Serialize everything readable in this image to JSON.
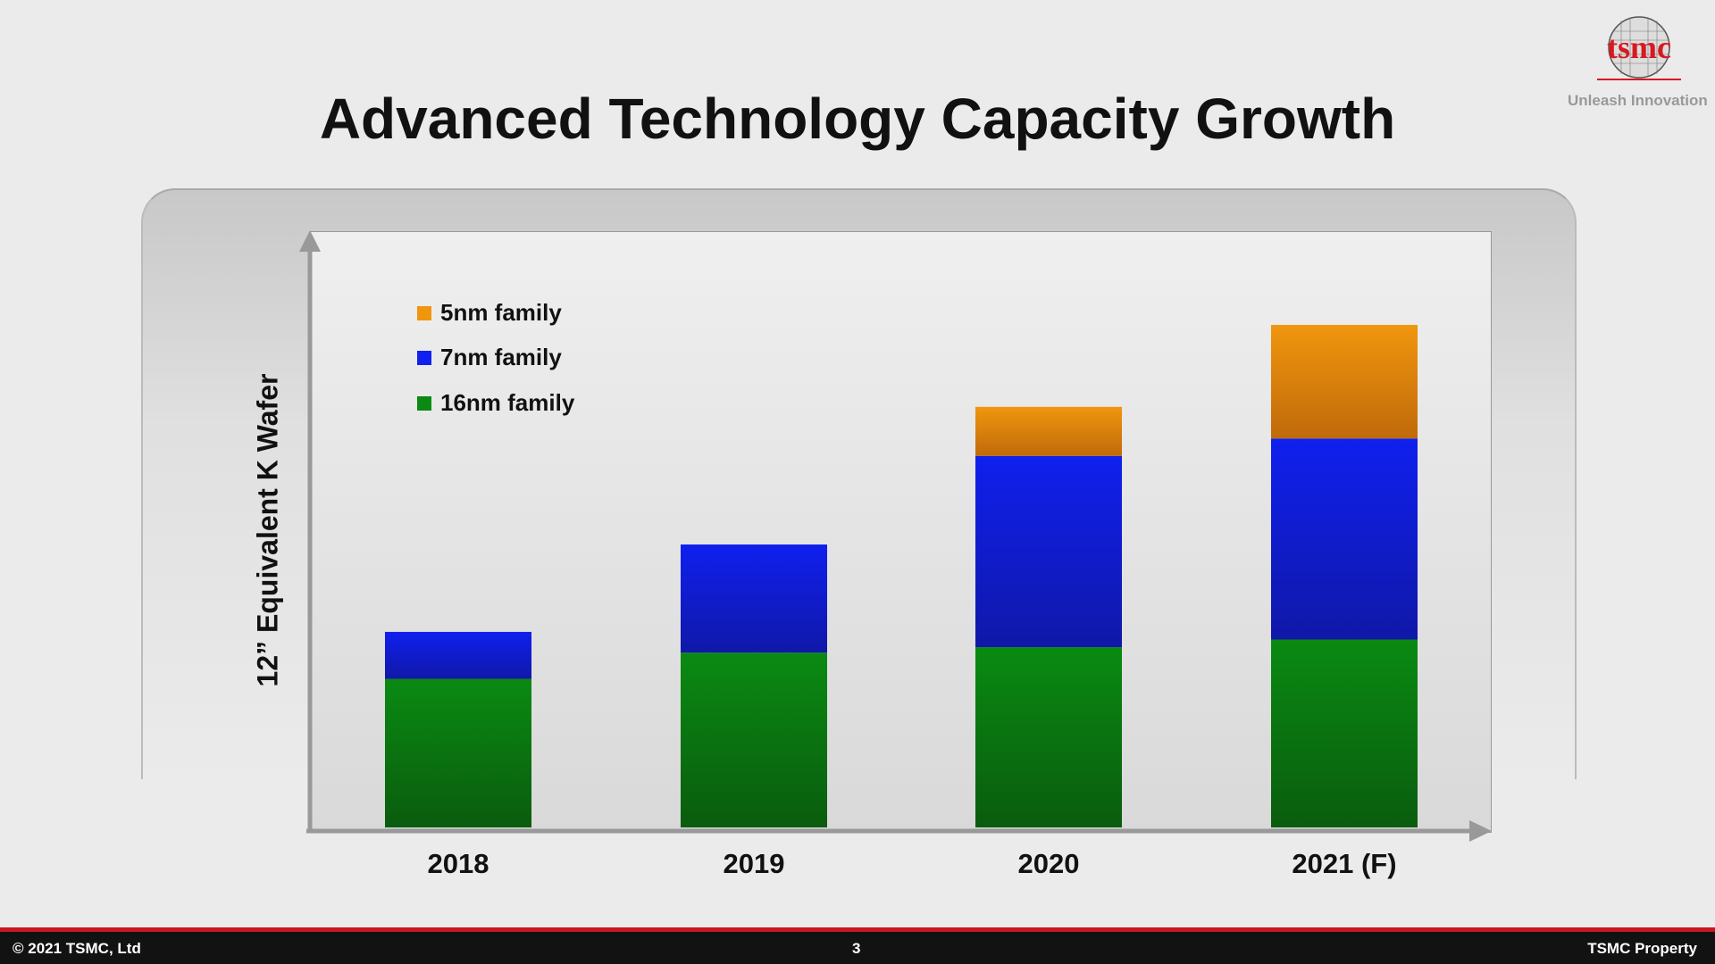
{
  "title": "Advanced Technology Capacity Growth",
  "logo": {
    "text": "tsmc",
    "tagline": "Unleash Innovation"
  },
  "footer": {
    "copyright": "© 2021 TSMC, Ltd",
    "page": "3",
    "property": "TSMC Property"
  },
  "chart_data": {
    "type": "bar",
    "stacked": true,
    "title": "Advanced Technology Capacity Growth",
    "ylabel": "12” Equivalent K Wafer",
    "xlabel": "",
    "categories": [
      "2018",
      "2019",
      "2020",
      "2021 (F)"
    ],
    "series": [
      {
        "name": "16nm family",
        "color": "#0a8a12",
        "values": [
          136,
          160,
          165,
          172
        ]
      },
      {
        "name": "7nm family",
        "color": "#1020ee",
        "values": [
          43,
          99,
          175,
          184
        ]
      },
      {
        "name": "5nm family",
        "color": "#f0960e",
        "values": [
          0,
          0,
          45,
          104
        ]
      }
    ],
    "legend_order": [
      "5nm family",
      "7nm family",
      "16nm family"
    ],
    "ylim": [
      0,
      545
    ],
    "grid": false,
    "legend": "top-left",
    "y_ticks_shown": false
  }
}
